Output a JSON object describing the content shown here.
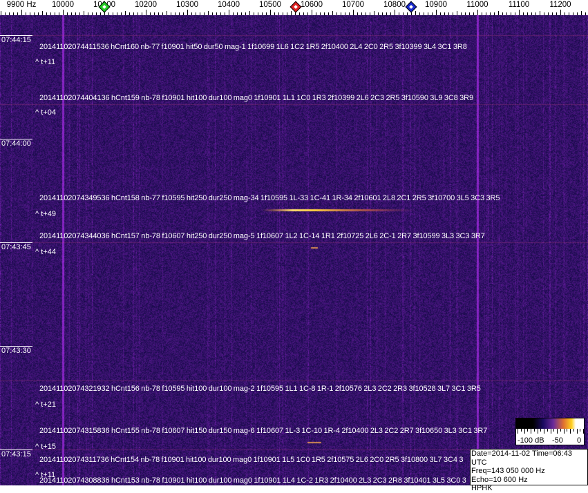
{
  "axis": {
    "unit_label": "9900 Hz",
    "labels": [
      "10000",
      "10100",
      "10200",
      "10300",
      "10400",
      "10500",
      "10600",
      "10700",
      "10800",
      "10900",
      "11000",
      "11100",
      "11200"
    ],
    "start_hz": 9900,
    "end_hz": 11260
  },
  "markers": [
    {
      "name": "green-marker",
      "freq_hz": 10100,
      "color": "#22cc22"
    },
    {
      "name": "red-marker",
      "freq_hz": 10562,
      "color": "#dd2222"
    },
    {
      "name": "blue-marker",
      "freq_hz": 10840,
      "color": "#1a2acc"
    }
  ],
  "time_labels": [
    "07:44:15",
    "07:44:00",
    "07:43:45",
    "07:43:30",
    "07:43:15"
  ],
  "events": [
    {
      "text": "20141102074411536 hCnt160 nb-77 f10901 hit50 dur50 mag-1 1f10699 1L6 1C2 1R5 2f10400 2L4 2C0 2R5 3f10399 3L4 3C1 3R8",
      "rel": "^ t+11"
    },
    {
      "text": "20141102074404136 hCnt159 nb-78 f10901 hit100 dur100 mag0 1f10901 1L1 1C0 1R3 2f10399 2L6 2C3 2R5 3f10590 3L9 3C8 3R9",
      "rel": "^ t+04"
    },
    {
      "text": "20141102074349536 hCnt158 nb-77 f10595 hit250 dur250 mag-34 1f10595 1L-33 1C-41 1R-34 2f10601 2L8 2C1 2R5 3f10700 3L5 3C3 3R5",
      "rel": "^ t+49"
    },
    {
      "text": "20141102074344036 hCnt157 nb-78 f10607 hit250 dur250 mag-5 1f10607 1L2 1C-14 1R1 2f10725 2L6 2C-1 2R7 3f10599 3L3 3C3 3R7",
      "rel": "^ t+44"
    },
    {
      "text": "20141102074321932 hCnt156 nb-78 f10595 hit100 dur100 mag-2 1f10595 1L1 1C-8 1R-1 2f10576 2L3 2C2 2R3 3f10528 3L7 3C1 3R5",
      "rel": "^ t+21"
    },
    {
      "text": "20141102074315836 hCnt155 nb-78 f10607 hit150 dur150 mag-6 1f10607 1L-3 1C-10 1R-4 2f10400 2L3 2C2 2R7 3f10650 3L3 3C1 3R7",
      "rel": "^ t+15"
    },
    {
      "text": "20141102074311736 hCnt154 nb-78 f10901 hit100 dur100 mag0 1f10901 1L5 1C0 1R5 2f10575 2L6 2C0 2R5 3f10800 3L7 3C4 3",
      "rel": "^ t+11"
    },
    {
      "text": "20141102074308836 hCnt153 nb-78 f10901 hit100 dur100 mag0 1f10901 1L4 1C-2 1R3 2f10400 2L3 2C3 2R8 3f10401 3L5 3C0 3",
      "rel": ""
    }
  ],
  "colorbar": {
    "labels": [
      "-100 dB",
      "-50",
      "0"
    ]
  },
  "info": {
    "line1": "Date=2014-11-02 Time=06:43 UTC",
    "line2": "Freq=143 050 000 Hz",
    "line3": "Echo=10 600 Hz",
    "line4": "HPHK"
  },
  "colors": {
    "background": "#2a1a7a",
    "signal": "#ffd040",
    "carrier": "#b04070"
  }
}
